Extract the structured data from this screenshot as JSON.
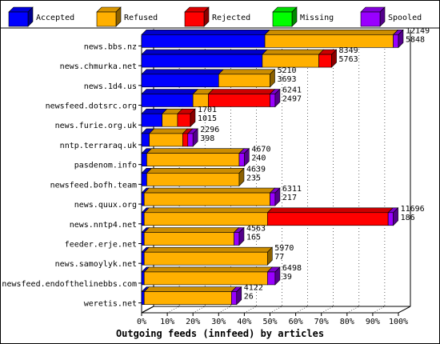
{
  "chart_data": {
    "type": "bar",
    "orientation": "horizontal",
    "stacked": true,
    "percent_stacked": true,
    "three_d": true,
    "xlabel": "Outgoing feeds (innfeed) by articles",
    "ylabel": "",
    "xlim": [
      0,
      100
    ],
    "x_ticks": [
      "0%",
      "10%",
      "20%",
      "30%",
      "40%",
      "50%",
      "60%",
      "70%",
      "80%",
      "90%",
      "100%"
    ],
    "legend_position": "top",
    "grid": "vertical dotted",
    "categories": [
      "news.bbs.nz",
      "news.chmurka.net",
      "news.1d4.us",
      "newsfeed.dotsrc.org",
      "news.furie.org.uk",
      "nntp.terraraq.uk",
      "pasdenom.info",
      "newsfeed.bofh.team",
      "news.quux.org",
      "news.nntp4.net",
      "feeder.erje.net",
      "news.samoylyk.net",
      "newsfeed.endofthelinebbs.com",
      "weretis.net"
    ],
    "series": [
      {
        "name": "Accepted",
        "color": "#0000ff",
        "values": [
          48,
          47,
          30,
          20,
          8,
          3,
          2,
          2,
          1,
          1,
          1,
          1,
          1,
          1
        ]
      },
      {
        "name": "Refused",
        "color": "#ffb000",
        "values": [
          50,
          22,
          20,
          6,
          6,
          13,
          36,
          36,
          49,
          48,
          35,
          48,
          48,
          34
        ]
      },
      {
        "name": "Rejected",
        "color": "#ff0000",
        "values": [
          0,
          5,
          0,
          24,
          5,
          2,
          0,
          0,
          0,
          47,
          0,
          0,
          0,
          0
        ]
      },
      {
        "name": "Missing",
        "color": "#00ff00",
        "values": [
          0,
          0,
          0,
          0,
          0,
          0,
          0,
          0,
          0,
          0,
          0,
          0,
          0,
          0
        ]
      },
      {
        "name": "Spooled",
        "color": "#9900ff",
        "values": [
          2,
          0,
          0,
          2,
          0,
          2,
          2,
          0,
          2,
          2,
          2,
          0,
          3,
          2
        ]
      }
    ],
    "annotations": [
      {
        "line1": "12149",
        "line2": "5848"
      },
      {
        "line1": "8349",
        "line2": "5763"
      },
      {
        "line1": "5210",
        "line2": "3693"
      },
      {
        "line1": "6241",
        "line2": "2497"
      },
      {
        "line1": "1701",
        "line2": "1015"
      },
      {
        "line1": "2296",
        "line2": "398"
      },
      {
        "line1": "4670",
        "line2": "240"
      },
      {
        "line1": "4639",
        "line2": "235"
      },
      {
        "line1": "6311",
        "line2": "217"
      },
      {
        "line1": "11696",
        "line2": "186"
      },
      {
        "line1": "4563",
        "line2": "165"
      },
      {
        "line1": "5970",
        "line2": "77"
      },
      {
        "line1": "6498",
        "line2": "39"
      },
      {
        "line1": "4122",
        "line2": "26"
      }
    ]
  }
}
